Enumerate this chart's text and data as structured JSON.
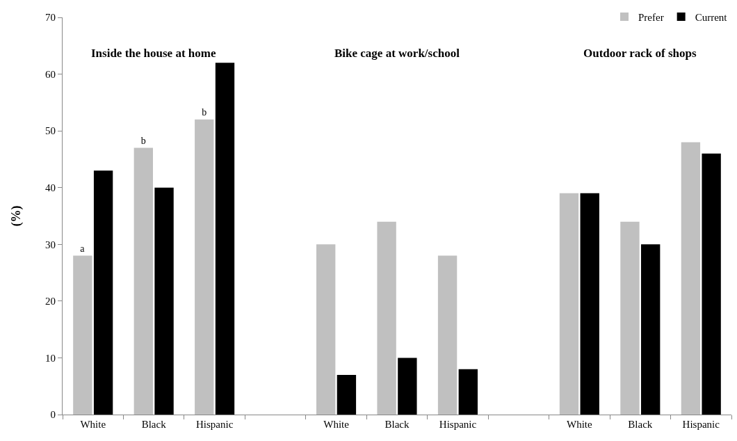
{
  "chart_data": {
    "type": "bar",
    "ylabel": "(%)",
    "categories": [
      "White",
      "Black",
      "Hispanic",
      null,
      "White",
      "Black",
      "Hispanic",
      null,
      "White",
      "Black",
      "Hispanic"
    ],
    "series": [
      {
        "name": "Prefer",
        "color": "#c0c0c0",
        "values": [
          28,
          47,
          52,
          null,
          30,
          34,
          28,
          null,
          39,
          34,
          48
        ],
        "value_labels": [
          "a",
          "b",
          "b",
          null,
          null,
          null,
          null,
          null,
          null,
          null,
          null
        ]
      },
      {
        "name": "Current",
        "color": "#000000",
        "values": [
          43,
          40,
          62,
          null,
          7,
          10,
          8,
          null,
          39,
          30,
          46
        ]
      }
    ],
    "annotations": [
      "Inside the house at home",
      "Bike cage at work/school",
      "Outdoor rack of shops"
    ],
    "ylim": [
      0,
      70
    ],
    "yticks": [
      0,
      10,
      20,
      30,
      40,
      50,
      60,
      70
    ],
    "grid": false,
    "legend": "top right"
  }
}
